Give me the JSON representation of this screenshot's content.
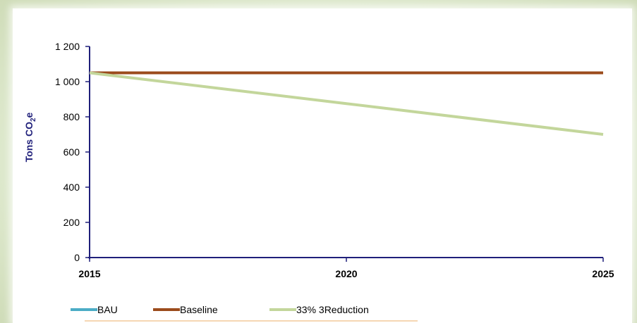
{
  "chart_data": {
    "type": "line",
    "x": [
      2015,
      2020,
      2025
    ],
    "x_tick_labels": [
      "2015",
      "2020",
      "2025"
    ],
    "y_tick_labels": [
      "0",
      "200",
      "400",
      "600",
      "800",
      "1 000",
      "1 200"
    ],
    "ylim": [
      0,
      1200
    ],
    "xlim": [
      2015,
      2025
    ],
    "ylabel": "Tons CO2e",
    "xlabel": "",
    "title": "",
    "legend_position": "bottom-left",
    "grid": false,
    "series": [
      {
        "name": "BAU",
        "color": "#4bacc6",
        "values": [
          1050,
          1050,
          1050
        ]
      },
      {
        "name": "Baseline",
        "color": "#9b4b1c",
        "values": [
          1050,
          1050,
          1050
        ]
      },
      {
        "name": "33% 3Reduction",
        "color": "#c3d69b",
        "values": [
          1050,
          875,
          700
        ]
      }
    ]
  }
}
